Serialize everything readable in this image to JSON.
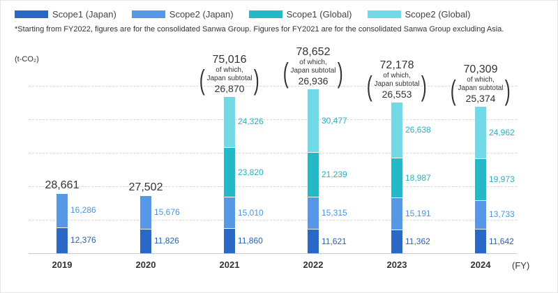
{
  "chart_data": {
    "type": "bar",
    "stacked": true,
    "legend": [
      {
        "name": "Scope1 (Japan)",
        "color": "#2b68c6"
      },
      {
        "name": "Scope2 (Japan)",
        "color": "#5798e6"
      },
      {
        "name": "Scope1 (Global)",
        "color": "#25b8c7"
      },
      {
        "name": "Scope2 (Global)",
        "color": "#72d9e6"
      }
    ],
    "label_colors": [
      "#2a5fae",
      "#4f92de",
      "#28b0c0",
      "#28b0c0"
    ],
    "note": "*Starting from FY2022, figures are for the consolidated Sanwa Group. Figures for FY2021 are for the consolidated Sanwa Group excluding Asia.",
    "ylabel": "(t-CO₂)",
    "xlabel": "(FY)",
    "legend_position": "top-left",
    "grid": true,
    "ylim": [
      0,
      80000
    ],
    "categories": [
      "2019",
      "2020",
      "2021",
      "2022",
      "2023",
      "2024"
    ],
    "series": [
      {
        "name": "Scope1 (Japan)",
        "values": [
          12376,
          11826,
          11860,
          11621,
          11362,
          11642
        ]
      },
      {
        "name": "Scope2 (Japan)",
        "values": [
          16286,
          15676,
          15010,
          15315,
          15191,
          13733
        ]
      },
      {
        "name": "Scope1 (Global)",
        "values": [
          null,
          null,
          23820,
          21239,
          18987,
          19973
        ]
      },
      {
        "name": "Scope2 (Global)",
        "values": [
          null,
          null,
          24326,
          30477,
          26638,
          24962
        ]
      }
    ],
    "value_labels": [
      [
        "12,376",
        "16,286",
        null,
        null
      ],
      [
        "11,826",
        "15,676",
        null,
        null
      ],
      [
        "11,860",
        "15,010",
        "23,820",
        "24,326"
      ],
      [
        "11,621",
        "15,315",
        "21,239",
        "30,477"
      ],
      [
        "11,362",
        "15,191",
        "18,987",
        "26,638"
      ],
      [
        "11,642",
        "13,733",
        "19,973",
        "24,962"
      ]
    ],
    "totals": [
      "28,661",
      "27,502",
      "75,016",
      "78,652",
      "72,178",
      "70,309"
    ],
    "subtotal_caption": [
      "of which,",
      "Japan subtotal"
    ],
    "japan_subtotals": [
      null,
      null,
      "26,870",
      "26,936",
      "26,553",
      "25,374"
    ]
  }
}
